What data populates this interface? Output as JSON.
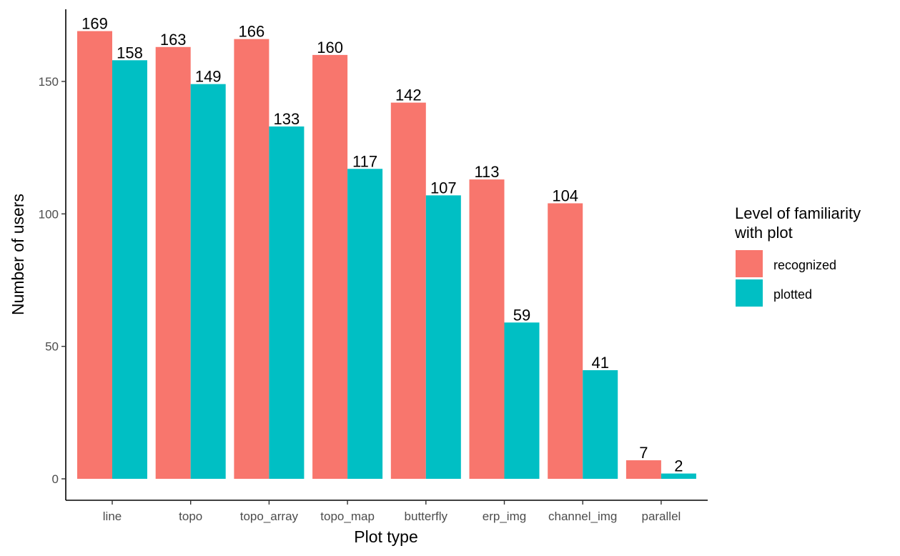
{
  "chart_data": {
    "type": "bar",
    "title": "",
    "xlabel": "Plot type",
    "ylabel": "Number of users",
    "categories": [
      "line",
      "topo",
      "topo_array",
      "topo_map",
      "butterfly",
      "erp_img",
      "channel_img",
      "parallel"
    ],
    "series": [
      {
        "name": "recognized",
        "color": "#F8766D",
        "values": [
          169,
          163,
          166,
          160,
          142,
          113,
          104,
          7
        ]
      },
      {
        "name": "plotted",
        "color": "#00BFC4",
        "values": [
          158,
          149,
          133,
          117,
          107,
          59,
          41,
          2
        ]
      }
    ],
    "yticks": [
      0,
      50,
      100,
      150
    ],
    "ylim": [
      0,
      175
    ],
    "grid": false,
    "legend": {
      "title_lines": [
        "Level of familiarity",
        "with plot"
      ],
      "position": "right"
    }
  }
}
